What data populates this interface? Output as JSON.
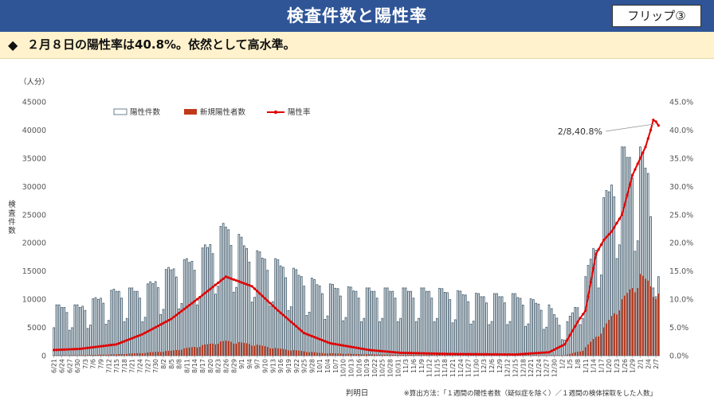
{
  "header": {
    "title": "検査件数と陽性率",
    "flip_label": "フリップ③"
  },
  "headline": {
    "bullet": "◆",
    "text": "２月８日の陽性率は40.8%。依然として高水準。"
  },
  "colors": {
    "header_bg": "#2f5597",
    "band_bg": "#fff2cc",
    "tests_fill": "#ffffff",
    "tests_stroke": "#4a6273",
    "positives": "#c0391b",
    "rate_line": "#e00000"
  },
  "chart_data": {
    "type": "bar",
    "y_left_unit": "（人分）",
    "y_left_label": "検査件数",
    "y_left_ticks": [
      "0",
      "5000",
      "10000",
      "15000",
      "20000",
      "25000",
      "30000",
      "35000",
      "40000",
      "45000"
    ],
    "y_right_ticks": [
      "0.0%",
      "5.0%",
      "10.0%",
      "15.0%",
      "20.0%",
      "25.0%",
      "30.0%",
      "35.0%",
      "40.0%",
      "45.0%"
    ],
    "ylim_left": [
      0,
      45000
    ],
    "ylim_right": [
      0,
      45
    ],
    "x_start_date": "6/21",
    "x_tick_labels": [
      "6/21",
      "6/24",
      "6/27",
      "6/30",
      "7/3",
      "7/6",
      "7/9",
      "7/12",
      "7/15",
      "7/18",
      "7/21",
      "7/24",
      "7/27",
      "7/30",
      "8/2",
      "8/5",
      "8/8",
      "8/11",
      "8/14",
      "8/17",
      "8/20",
      "8/23",
      "8/26",
      "8/29",
      "9/1",
      "9/4",
      "9/7",
      "9/10",
      "9/13",
      "9/16",
      "9/19",
      "9/22",
      "9/25",
      "9/28",
      "10/1",
      "10/4",
      "10/7",
      "10/10",
      "10/13",
      "10/16",
      "10/19",
      "10/22",
      "10/25",
      "10/28",
      "10/31",
      "11/3",
      "11/6",
      "11/9",
      "11/12",
      "11/15",
      "11/18",
      "11/21",
      "11/24",
      "11/27",
      "11/30",
      "12/3",
      "12/6",
      "12/9",
      "12/12",
      "12/15",
      "12/18",
      "12/21",
      "12/24",
      "12/27",
      "12/30",
      "1/2",
      "1/5",
      "1/8",
      "1/11",
      "1/14",
      "1/17",
      "1/20",
      "1/23",
      "1/26",
      "1/29",
      "2/1",
      "2/4",
      "2/7"
    ],
    "x_title": "判明日",
    "legend": {
      "tests": "陽性件数",
      "positives": "新規陽性者数",
      "rate": "陽性率",
      "position": "top-left"
    },
    "annotation": "2/8,40.8%",
    "footnote": "※算出方法：「１週間の陽性者数（疑似症を除く）／１週間の検体採取をした人数」",
    "grid": false,
    "series": [
      {
        "key": "tests",
        "x": [
          "6/21",
          "7/1",
          "7/15",
          "7/25",
          "8/5",
          "8/15",
          "8/26",
          "9/5",
          "9/15",
          "10/1",
          "10/15",
          "11/1",
          "11/15",
          "12/1",
          "12/15",
          "12/28",
          "1/3",
          "1/10",
          "1/18",
          "1/25",
          "2/1",
          "2/4",
          "2/8"
        ],
        "values": [
          9000,
          9000,
          12000,
          12000,
          16000,
          18000,
          24000,
          19000,
          17000,
          13000,
          12000,
          12000,
          12000,
          11000,
          11000,
          9000,
          5000,
          12000,
          28000,
          37000,
          37000,
          34000,
          14000
        ]
      },
      {
        "key": "positives",
        "x": [
          "6/21",
          "7/1",
          "7/15",
          "7/25",
          "8/5",
          "8/15",
          "8/26",
          "9/5",
          "9/15",
          "10/1",
          "10/15",
          "11/1",
          "12/15",
          "12/28",
          "1/3",
          "1/10",
          "1/18",
          "1/25",
          "2/1",
          "2/4",
          "2/8"
        ],
        "values": [
          60,
          80,
          250,
          500,
          900,
          1700,
          2700,
          2100,
          1300,
          500,
          300,
          150,
          80,
          80,
          60,
          1000,
          5000,
          10000,
          14500,
          13500,
          11000
        ]
      },
      {
        "key": "rate",
        "x": [
          "6/21",
          "7/1",
          "7/15",
          "7/25",
          "8/5",
          "8/15",
          "8/26",
          "9/5",
          "9/15",
          "9/25",
          "10/5",
          "10/20",
          "11/1",
          "11/20",
          "12/15",
          "12/28",
          "1/3",
          "1/8",
          "1/11",
          "1/15",
          "1/18",
          "1/21",
          "1/25",
          "1/29",
          "2/1",
          "2/3",
          "2/5",
          "2/6",
          "2/7",
          "2/8"
        ],
        "values": [
          1.0,
          1.2,
          2.0,
          3.8,
          6.5,
          10.0,
          14.0,
          12.3,
          8.0,
          4.0,
          2.2,
          1.0,
          0.5,
          0.3,
          0.2,
          0.6,
          2.0,
          6.0,
          8.0,
          18.0,
          20.5,
          22.0,
          25.0,
          32.0,
          35.0,
          37.0,
          40.0,
          41.8,
          41.5,
          40.8
        ]
      }
    ]
  }
}
